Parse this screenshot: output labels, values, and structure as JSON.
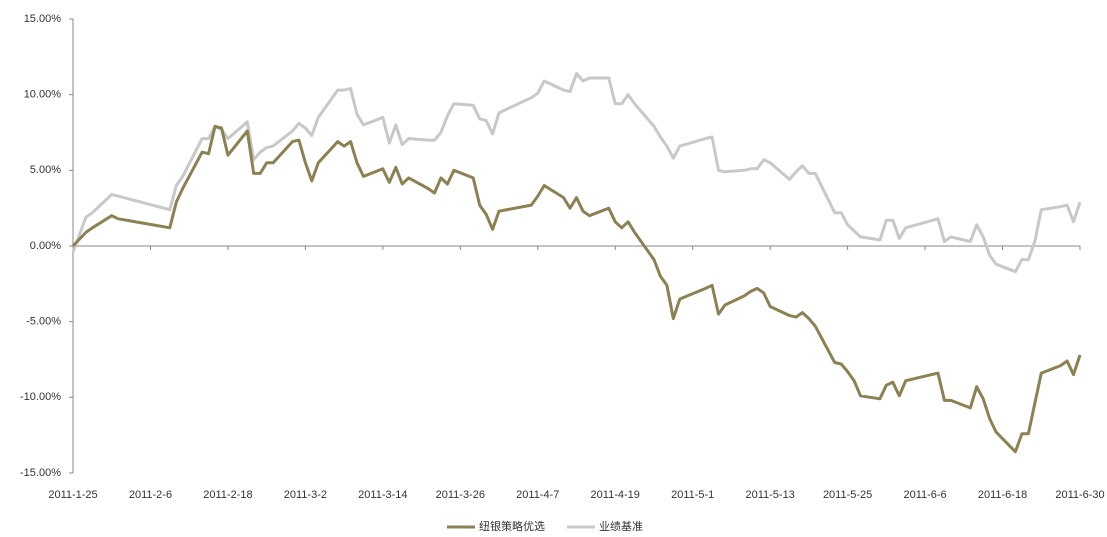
{
  "chart_data": {
    "type": "line",
    "x": [
      "2011-1-25",
      "2011-1-27",
      "2011-1-28",
      "2011-1-31",
      "2011-2-1",
      "2011-2-9",
      "2011-2-10",
      "2011-2-11",
      "2011-2-14",
      "2011-2-15",
      "2011-2-16",
      "2011-2-17",
      "2011-2-18",
      "2011-2-21",
      "2011-2-22",
      "2011-2-23",
      "2011-2-24",
      "2011-2-25",
      "2011-2-28",
      "2011-3-1",
      "2011-3-2",
      "2011-3-3",
      "2011-3-4",
      "2011-3-7",
      "2011-3-8",
      "2011-3-9",
      "2011-3-10",
      "2011-3-11",
      "2011-3-14",
      "2011-3-15",
      "2011-3-16",
      "2011-3-17",
      "2011-3-18",
      "2011-3-21",
      "2011-3-22",
      "2011-3-23",
      "2011-3-24",
      "2011-3-25",
      "2011-3-28",
      "2011-3-29",
      "2011-3-30",
      "2011-3-31",
      "2011-4-1",
      "2011-4-6",
      "2011-4-7",
      "2011-4-8",
      "2011-4-11",
      "2011-4-12",
      "2011-4-13",
      "2011-4-14",
      "2011-4-15",
      "2011-4-18",
      "2011-4-19",
      "2011-4-20",
      "2011-4-21",
      "2011-4-22",
      "2011-4-25",
      "2011-4-26",
      "2011-4-27",
      "2011-4-28",
      "2011-4-29",
      "2011-5-3",
      "2011-5-4",
      "2011-5-5",
      "2011-5-6",
      "2011-5-9",
      "2011-5-10",
      "2011-5-11",
      "2011-5-12",
      "2011-5-13",
      "2011-5-16",
      "2011-5-17",
      "2011-5-18",
      "2011-5-19",
      "2011-5-20",
      "2011-5-23",
      "2011-5-24",
      "2011-5-25",
      "2011-5-26",
      "2011-5-27",
      "2011-5-30",
      "2011-5-31",
      "2011-6-1",
      "2011-6-2",
      "2011-6-3",
      "2011-6-8",
      "2011-6-9",
      "2011-6-10",
      "2011-6-13",
      "2011-6-14",
      "2011-6-15",
      "2011-6-16",
      "2011-6-17",
      "2011-6-20",
      "2011-6-21",
      "2011-6-22",
      "2011-6-23",
      "2011-6-24",
      "2011-6-27",
      "2011-6-28",
      "2011-6-29",
      "2011-6-30"
    ],
    "series": [
      {
        "name": "纽银策略优选",
        "color": "#8c8152",
        "values": [
          0,
          0.9,
          1.2,
          2.0,
          1.8,
          1.2,
          2.9,
          3.8,
          6.2,
          6.1,
          7.9,
          7.8,
          6.0,
          7.6,
          4.8,
          4.8,
          5.5,
          5.5,
          6.9,
          7.0,
          5.5,
          4.3,
          5.5,
          6.9,
          6.6,
          6.9,
          5.5,
          4.6,
          5.1,
          4.2,
          5.2,
          4.1,
          4.5,
          3.8,
          3.5,
          4.5,
          4.1,
          5.0,
          4.5,
          2.7,
          2.1,
          1.1,
          2.3,
          2.7,
          3.3,
          4.0,
          3.2,
          2.5,
          3.2,
          2.3,
          2.0,
          2.5,
          1.6,
          1.2,
          1.6,
          0.9,
          -0.9,
          -2.0,
          -2.6,
          -4.8,
          -3.5,
          -2.8,
          -2.6,
          -4.5,
          -3.9,
          -3.3,
          -3.0,
          -2.8,
          -3.1,
          -4.0,
          -4.6,
          -4.7,
          -4.4,
          -4.8,
          -5.3,
          -7.7,
          -7.8,
          -8.3,
          -8.9,
          -9.9,
          -10.1,
          -9.2,
          -9.0,
          -9.9,
          -8.9,
          -8.4,
          -10.2,
          -10.2,
          -10.7,
          -9.3,
          -10.1,
          -11.4,
          -12.3,
          -13.6,
          -12.4,
          -12.4,
          -10.4,
          -8.4,
          -7.9,
          -7.6,
          -8.5,
          -7.2
        ]
      },
      {
        "name": "业绩基准",
        "color": "#c8c8c8",
        "values": [
          -0.4,
          1.9,
          2.2,
          3.4,
          3.3,
          2.4,
          4.0,
          4.6,
          7.1,
          7.1,
          7.9,
          7.7,
          7.1,
          8.2,
          5.7,
          6.2,
          6.5,
          6.6,
          7.6,
          8.1,
          7.8,
          7.3,
          8.5,
          10.3,
          10.3,
          10.4,
          8.7,
          8.0,
          8.5,
          6.8,
          8.0,
          6.7,
          7.1,
          7.0,
          7.0,
          7.5,
          8.6,
          9.4,
          9.3,
          8.4,
          8.3,
          7.4,
          8.8,
          9.8,
          10.1,
          10.9,
          10.3,
          10.2,
          11.4,
          10.9,
          11.1,
          11.1,
          9.4,
          9.4,
          10.0,
          9.4,
          7.9,
          7.2,
          6.6,
          5.8,
          6.6,
          7.1,
          7.2,
          5.0,
          4.9,
          5.0,
          5.1,
          5.1,
          5.7,
          5.5,
          4.4,
          4.9,
          5.3,
          4.8,
          4.8,
          2.2,
          2.2,
          1.4,
          1.0,
          0.6,
          0.4,
          1.7,
          1.7,
          0.5,
          1.2,
          1.8,
          0.3,
          0.6,
          0.3,
          1.4,
          0.6,
          -0.6,
          -1.2,
          -1.7,
          -0.9,
          -0.9,
          0.3,
          2.4,
          2.6,
          2.7,
          1.6,
          2.9
        ]
      }
    ],
    "xlim": [
      "2011-1-25",
      "2011-6-30"
    ],
    "xticks": [
      "2011-1-25",
      "2011-2-6",
      "2011-2-18",
      "2011-3-2",
      "2011-3-14",
      "2011-3-26",
      "2011-4-7",
      "2011-4-19",
      "2011-5-1",
      "2011-5-13",
      "2011-5-25",
      "2011-6-6",
      "2011-6-18",
      "2011-6-30"
    ],
    "ylim": [
      -15,
      15
    ],
    "yticks": [
      {
        "value": -15,
        "label": "-15.00%"
      },
      {
        "value": -10,
        "label": "-10.00%"
      },
      {
        "value": -5,
        "label": "-5.00%"
      },
      {
        "value": 0,
        "label": "0.00%"
      },
      {
        "value": 5,
        "label": "5.00%"
      },
      {
        "value": 10,
        "label": "10.00%"
      },
      {
        "value": 15,
        "label": "15.00%"
      }
    ],
    "legend": "bottom"
  }
}
